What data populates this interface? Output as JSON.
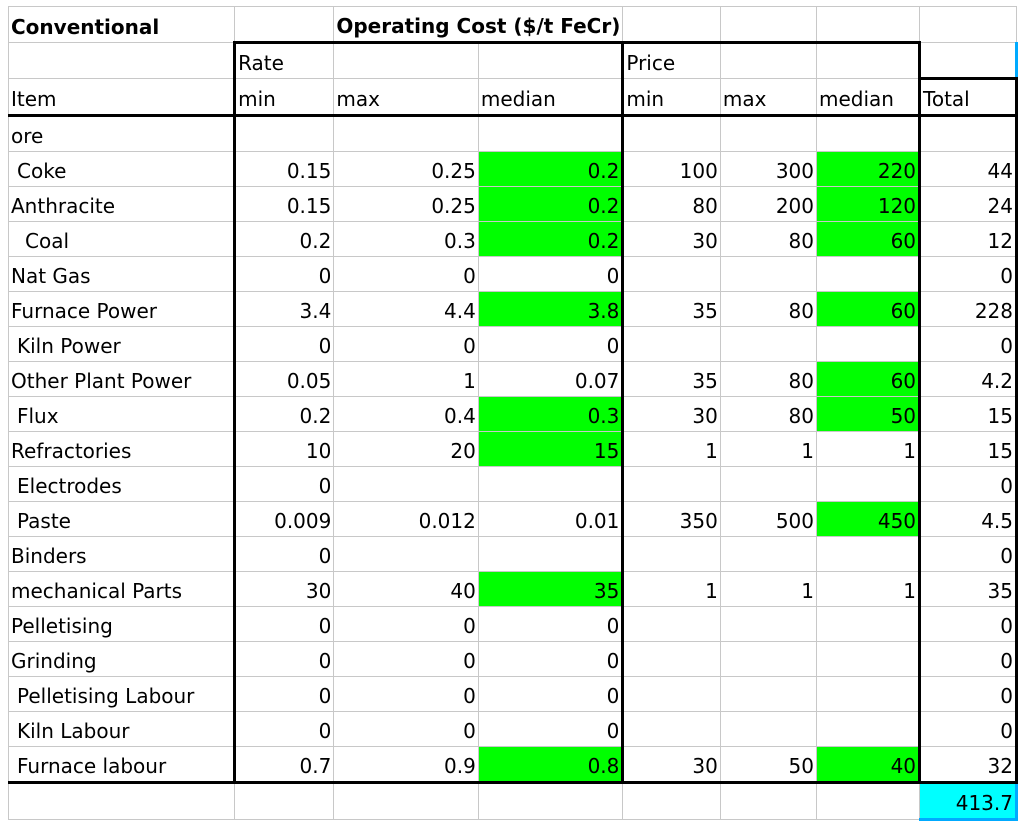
{
  "title": "Conventional",
  "section_title": "Operating Cost ($/t FeCr)",
  "group_headers": {
    "rate": "Rate",
    "price": "Price"
  },
  "columns": [
    "Item",
    "min",
    "max",
    "median",
    "min",
    "max",
    "median",
    "Total"
  ],
  "highlight_color": "#00ff00",
  "total_color": "#00ffff",
  "rows": [
    [
      "ore",
      "",
      "",
      "",
      "",
      "",
      "",
      ""
    ],
    [
      " Coke",
      "0.15",
      "0.25",
      "0.2",
      "100",
      "300",
      "220",
      "44"
    ],
    [
      "Anthracite",
      "0.15",
      "0.25",
      "0.2",
      "80",
      "200",
      "120",
      "24"
    ],
    [
      "  Coal",
      "0.2",
      "0.3",
      "0.2",
      "30",
      "80",
      "60",
      "12"
    ],
    [
      "Nat Gas",
      "0",
      "0",
      "0",
      "",
      "",
      "",
      "0"
    ],
    [
      "Furnace Power",
      "3.4",
      "4.4",
      "3.8",
      "35",
      "80",
      "60",
      "228"
    ],
    [
      " Kiln Power",
      "0",
      "0",
      "0",
      "",
      "",
      "",
      "0"
    ],
    [
      "Other Plant Power",
      "0.05",
      "1",
      "0.07",
      "35",
      "80",
      "60",
      "4.2"
    ],
    [
      " Flux",
      "0.2",
      "0.4",
      "0.3",
      "30",
      "80",
      "50",
      "15"
    ],
    [
      "Refractories",
      "10",
      "20",
      "15",
      "1",
      "1",
      "1",
      "15"
    ],
    [
      " Electrodes",
      "0",
      "",
      "",
      "",
      "",
      "",
      "0"
    ],
    [
      " Paste",
      "0.009",
      "0.012",
      "0.01",
      "350",
      "500",
      "450",
      "4.5"
    ],
    [
      "Binders",
      "0",
      "",
      "",
      "",
      "",
      "",
      "0"
    ],
    [
      "mechanical Parts",
      "30",
      "40",
      "35",
      "1",
      "1",
      "1",
      "35"
    ],
    [
      "Pelletising",
      "0",
      "0",
      "0",
      "",
      "",
      "",
      "0"
    ],
    [
      "Grinding",
      "0",
      "0",
      "0",
      "",
      "",
      "",
      "0"
    ],
    [
      " Pelletising Labour",
      "0",
      "0",
      "0",
      "",
      "",
      "",
      "0"
    ],
    [
      " Kiln Labour",
      "0",
      "0",
      "0",
      "",
      "",
      "",
      "0"
    ],
    [
      " Furnace labour",
      "0.7",
      "0.9",
      "0.8",
      "30",
      "50",
      "40",
      "32"
    ]
  ],
  "grand_total": "413.7"
}
